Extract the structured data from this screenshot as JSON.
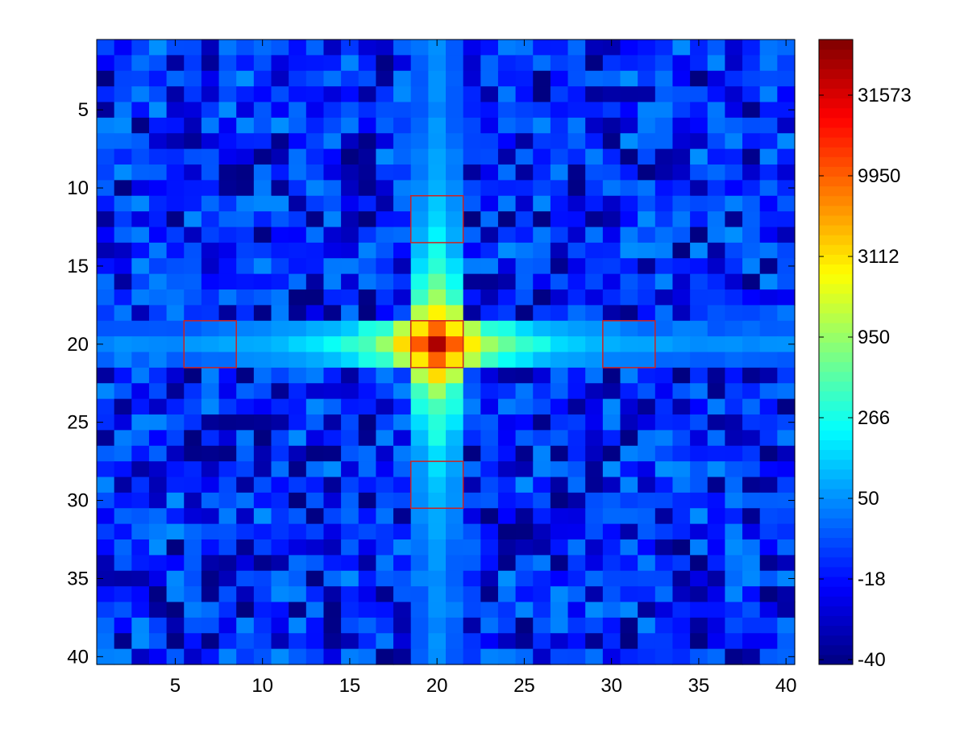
{
  "chart_data": {
    "type": "heatmap",
    "title": "",
    "xlabel": "",
    "ylabel": "",
    "rows": 40,
    "cols": 40,
    "x_ticks": [
      5,
      10,
      15,
      20,
      25,
      30,
      35,
      40
    ],
    "y_ticks": [
      5,
      10,
      15,
      20,
      25,
      30,
      35,
      40
    ],
    "colormap": "jet",
    "grid": false,
    "y_axis_direction": "reversed (row 1 at top)",
    "colorbar": {
      "ticks": [
        -40,
        -18,
        50,
        266,
        950,
        3112,
        9950,
        31573
      ],
      "labels": [
        "-40",
        "-18",
        "50",
        "266",
        "950",
        "3112",
        "9950",
        "31573"
      ],
      "min": -40,
      "max": 55000,
      "scale": "nonlinear (evenly spaced tick labels)"
    },
    "peak": {
      "row": 20,
      "col": 20,
      "value": 50000
    },
    "cross_profile": [
      {
        "offset": 0,
        "value": 50000
      },
      {
        "offset": 1,
        "value": 9950
      },
      {
        "offset": 2,
        "value": 3112
      },
      {
        "offset": 3,
        "value": 950
      },
      {
        "offset": 4,
        "value": 600
      },
      {
        "offset": 5,
        "value": 380
      },
      {
        "offset": 6,
        "value": 266
      },
      {
        "offset": 7,
        "value": 200
      },
      {
        "offset": 8,
        "value": 160
      },
      {
        "offset": 9,
        "value": 130
      },
      {
        "offset": 10,
        "value": 110
      },
      {
        "offset": 11,
        "value": 95
      },
      {
        "offset": 12,
        "value": 80
      },
      {
        "offset": 13,
        "value": 70
      },
      {
        "offset": 14,
        "value": 60
      },
      {
        "offset": 15,
        "value": 50
      }
    ],
    "background_value_range": [
      -40,
      50
    ],
    "highlight_boxes": [
      {
        "name": "box-top",
        "col_range": [
          19,
          21
        ],
        "row_range": [
          11,
          13
        ],
        "color": "#cc2222"
      },
      {
        "name": "box-left",
        "col_range": [
          6,
          8
        ],
        "row_range": [
          19,
          21
        ],
        "color": "#cc2222"
      },
      {
        "name": "box-center",
        "col_range": [
          19,
          21
        ],
        "row_range": [
          19,
          21
        ],
        "color": "#cc2222"
      },
      {
        "name": "box-right",
        "col_range": [
          30,
          32
        ],
        "row_range": [
          19,
          21
        ],
        "color": "#cc2222"
      },
      {
        "name": "box-bottom",
        "col_range": [
          19,
          21
        ],
        "row_range": [
          28,
          30
        ],
        "color": "#cc2222"
      }
    ]
  }
}
